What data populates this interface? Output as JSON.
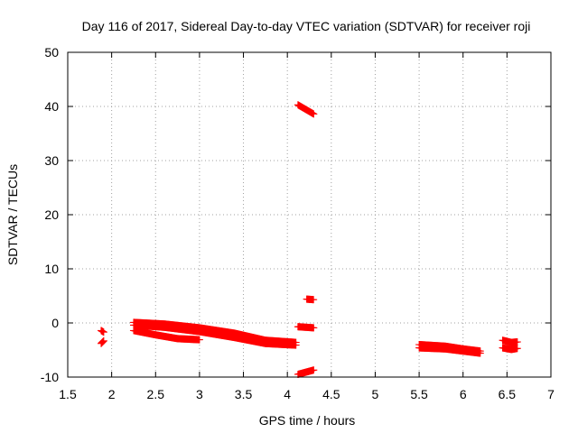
{
  "chart_data": {
    "type": "scatter",
    "title": "Day 116 of 2017, Sidereal Day-to-day VTEC variation (SDTVAR) for receiver roji",
    "xlabel": "GPS time / hours",
    "ylabel": "SDTVAR / TECUs",
    "xlim": [
      1.5,
      7
    ],
    "ylim": [
      -10,
      50
    ],
    "grid": true,
    "marker": "plus",
    "series_color": "#ff0000",
    "xticks": [
      1.5,
      2,
      2.5,
      3,
      3.5,
      4,
      4.5,
      5,
      5.5,
      6,
      6.5,
      7
    ],
    "xtick_labels": [
      "1.5",
      "2",
      "2.5",
      "3",
      "3.5",
      "4",
      "4.5",
      "5",
      "5.5",
      "6",
      "6.5",
      "7"
    ],
    "yticks": [
      -10,
      0,
      10,
      20,
      30,
      40,
      50
    ],
    "ytick_labels": [
      "-10",
      "0",
      "10",
      "20",
      "30",
      "40",
      "50"
    ],
    "segments": [
      {
        "x": [
          1.88,
          1.91
        ],
        "y": [
          -1.4,
          -1.7
        ]
      },
      {
        "x": [
          1.88,
          1.91
        ],
        "y": [
          -3.8,
          -3.3
        ]
      },
      {
        "x": [
          2.25,
          2.6,
          3.0,
          3.4,
          3.75,
          4.1
        ],
        "y": [
          0.1,
          -0.2,
          -0.9,
          -1.9,
          -3.2,
          -3.6
        ]
      },
      {
        "x": [
          2.25,
          2.6,
          3.0,
          3.4,
          3.75,
          4.1
        ],
        "y": [
          -0.4,
          -0.8,
          -1.6,
          -2.7,
          -3.8,
          -4.1
        ]
      },
      {
        "x": [
          2.25,
          2.5,
          2.75,
          3.0
        ],
        "y": [
          -1.4,
          -2.2,
          -2.9,
          -3.1
        ]
      },
      {
        "x": [
          4.12,
          4.3
        ],
        "y": [
          40.3,
          38.6
        ]
      },
      {
        "x": [
          4.22,
          4.3
        ],
        "y": [
          4.4,
          4.3
        ]
      },
      {
        "x": [
          4.12,
          4.3
        ],
        "y": [
          -0.7,
          -0.9
        ]
      },
      {
        "x": [
          4.12,
          4.3
        ],
        "y": [
          -9.5,
          -8.7
        ]
      },
      {
        "x": [
          5.5,
          5.8,
          6.0,
          6.2
        ],
        "y": [
          -4.0,
          -4.3,
          -4.8,
          -5.2
        ]
      },
      {
        "x": [
          5.5,
          5.8,
          6.0,
          6.2
        ],
        "y": [
          -4.6,
          -4.8,
          -5.2,
          -5.6
        ]
      },
      {
        "x": [
          6.45,
          6.55,
          6.62
        ],
        "y": [
          -3.2,
          -3.6,
          -3.5
        ]
      },
      {
        "x": [
          6.45,
          6.55,
          6.62
        ],
        "y": [
          -4.6,
          -4.9,
          -4.7
        ]
      }
    ]
  }
}
